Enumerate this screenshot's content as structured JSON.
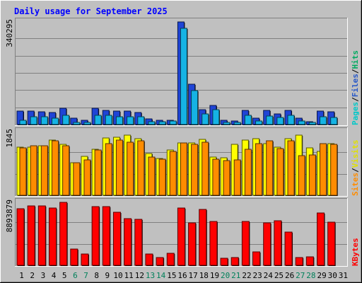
{
  "chart_data": {
    "type": "bar",
    "title": "Daily usage for September 2025",
    "categories": [
      "1",
      "2",
      "3",
      "4",
      "5",
      "6",
      "7",
      "8",
      "9",
      "10",
      "11",
      "12",
      "13",
      "14",
      "15",
      "16",
      "17",
      "18",
      "19",
      "20",
      "21",
      "22",
      "23",
      "24",
      "25",
      "26",
      "27",
      "28",
      "29",
      "30",
      "31"
    ],
    "weekend_days": [
      "6",
      "7",
      "13",
      "14",
      "20",
      "21",
      "27",
      "28"
    ],
    "panels": [
      {
        "name": "requests",
        "max_label": "340295",
        "ylim": [
          0,
          340295
        ],
        "legend": [
          "Pages",
          "Files",
          "Hits"
        ],
        "series": [
          {
            "name": "Hits",
            "color": "#1f44d6",
            "values": [
              44500,
              44000,
              43000,
              40000,
              54500,
              20500,
              14500,
              54500,
              45500,
              45000,
              43500,
              40500,
              18000,
              15000,
              15000,
              339000,
              132000,
              49500,
              62000,
              14500,
              11500,
              47500,
              21000,
              47000,
              34500,
              47500,
              21500,
              9000,
              43500,
              41500,
              0
            ]
          },
          {
            "name": "Files",
            "color": "#15b3e4",
            "values": [
              14500,
              25500,
              25000,
              22000,
              31000,
              7000,
              6000,
              30500,
              30000,
              25500,
              26000,
              25500,
              9000,
              9000,
              11000,
              318000,
              112000,
              36000,
              48500,
              7500,
              7000,
              30500,
              11500,
              27500,
              24000,
              29500,
              12500,
              7000,
              26000,
              24000,
              0
            ]
          },
          {
            "name": "Pages",
            "color": "#00e0e0",
            "values": [
              0,
              0,
              0,
              0,
              0,
              0,
              0,
              0,
              0,
              0,
              0,
              0,
              0,
              0,
              0,
              0,
              0,
              0,
              0,
              0,
              0,
              0,
              0,
              0,
              0,
              0,
              0,
              0,
              0,
              0,
              0
            ]
          }
        ]
      },
      {
        "name": "visits",
        "max_label": "1845",
        "ylim": [
          0,
          1845
        ],
        "legend": [
          "Sites",
          "Visits"
        ],
        "series": [
          {
            "name": "Visits",
            "color": "#ffff00",
            "values": [
              1380,
              1385,
              1425,
              1590,
              1460,
              935,
              1105,
              1325,
              1650,
              1665,
              1730,
              1615,
              1205,
              1050,
              1305,
              1510,
              1510,
              1605,
              1095,
              1070,
              1450,
              1590,
              1615,
              1485,
              1375,
              1615,
              1725,
              1365,
              1260,
              1475,
              0
            ]
          },
          {
            "name": "Sites",
            "color": "#ff8c00",
            "values": [
              1360,
              1415,
              1425,
              1560,
              1415,
              930,
              1005,
              1300,
              1490,
              1585,
              1520,
              1560,
              1095,
              1030,
              1250,
              1495,
              1465,
              1525,
              1035,
              1000,
              1020,
              1325,
              1470,
              1565,
              1345,
              1565,
              1135,
              1165,
              1480,
              1460,
              0
            ]
          }
        ]
      },
      {
        "name": "bytes",
        "max_label": "8893879",
        "ylim": [
          0,
          8893879
        ],
        "legend": [
          "KBytes"
        ],
        "series": [
          {
            "name": "KBytes",
            "color": "#ff0000",
            "values": [
              7790000,
              8220000,
              8220000,
              7950000,
              8680000,
              2240000,
              1520000,
              8080000,
              8130000,
              7290000,
              6430000,
              6350000,
              1590000,
              1030000,
              1650000,
              7900000,
              5840000,
              7680000,
              6090000,
              980000,
              1080000,
              6080000,
              1850000,
              5890000,
              6130000,
              4580000,
              1030000,
              1220000,
              7260000,
              6000000,
              0
            ]
          }
        ]
      }
    ],
    "grid": true
  }
}
